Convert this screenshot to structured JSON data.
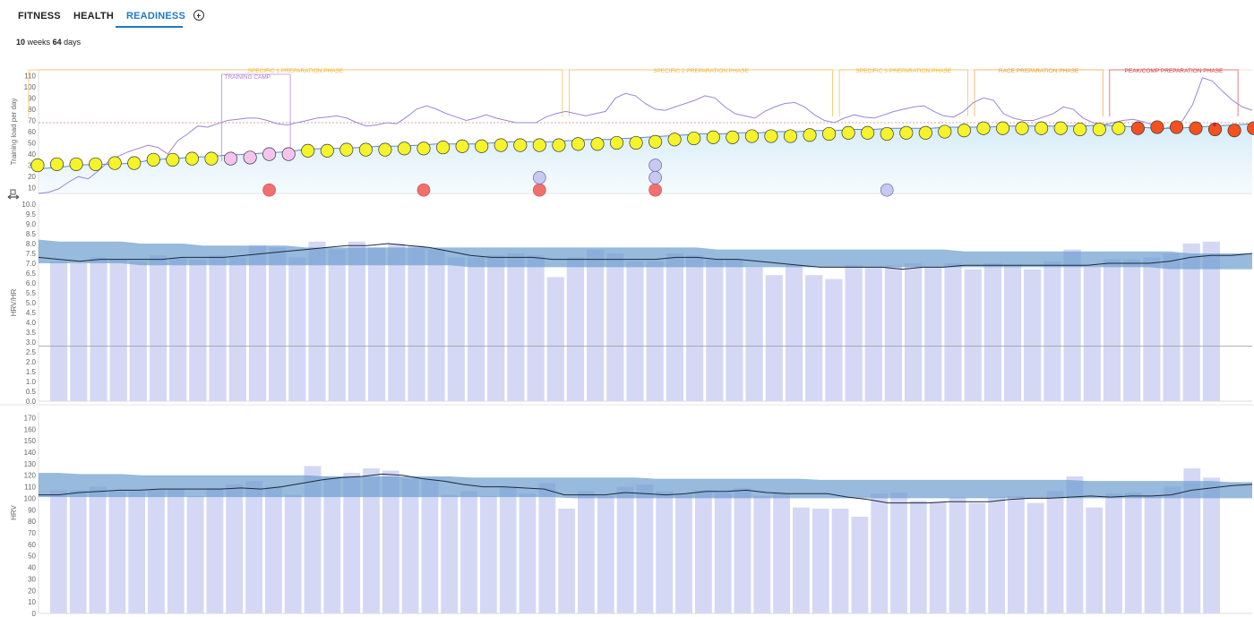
{
  "tabs": [
    {
      "label": "FITNESS",
      "active": false
    },
    {
      "label": "HEALTH",
      "active": false
    },
    {
      "label": "READINESS",
      "active": true
    }
  ],
  "period": {
    "weeks": "10",
    "weeks_unit": "weeks",
    "days": "64",
    "days_unit": "days"
  },
  "colors": {
    "accent": "#1f7ac0",
    "yellow": "#f5f32a",
    "orange_red": "#f4511e",
    "salmon": "#f07070",
    "lavender": "#c8c8f0",
    "pink": "#f4c4ef",
    "phase": "#f5b73a",
    "race_phase": "#f0a030",
    "peak_phase": "#e04040",
    "band": "#6f9fd0",
    "bars": "#d4d8f4"
  },
  "chart_data": [
    {
      "type": "scatter",
      "ylabel": "Training load per day",
      "yticks": [
        "10",
        "20",
        "30",
        "40",
        "50",
        "60",
        "70",
        "80",
        "90",
        "100",
        "110"
      ],
      "ylim": [
        5,
        115
      ],
      "reference_line": 68,
      "phases": [
        {
          "label": "SPECIFIC 1 PREPARATION PHASE",
          "start": 0,
          "end": 27
        },
        {
          "label": "TRAINING CAMP",
          "start": 10,
          "end": 13
        },
        {
          "label": "SPECIFIC 2 PREPARATION PHASE",
          "start": 28,
          "end": 41
        },
        {
          "label": "SPECIFIC 3 PREPARATION PHASE",
          "start": 42,
          "end": 48
        },
        {
          "label": "RACE PREPARATION PHASE",
          "start": 49,
          "end": 55
        },
        {
          "label": "PEAK/COMP PREPARATION PHASE",
          "start": 56,
          "end": 62
        }
      ],
      "load_line": [
        27,
        28,
        30,
        31,
        31,
        32,
        35,
        36,
        37,
        38,
        39,
        40,
        41,
        42,
        44,
        45,
        45,
        46,
        47,
        47,
        48,
        49,
        49,
        49,
        50,
        51,
        51,
        51,
        52,
        53,
        53,
        54,
        55,
        56,
        57,
        58,
        58,
        59,
        59,
        60,
        60,
        61,
        61,
        62,
        62,
        63,
        63,
        63,
        64,
        64,
        64,
        65,
        65,
        65,
        65,
        65,
        66,
        65,
        64,
        63,
        63,
        64,
        65,
        66,
        67
      ],
      "daily_points": [
        30,
        31,
        31,
        31,
        32,
        32,
        35,
        35,
        36,
        36,
        36,
        37,
        40,
        40,
        43,
        43,
        44,
        44,
        44,
        45,
        45,
        46,
        47,
        47,
        48,
        48,
        48,
        48,
        49,
        49,
        50,
        50,
        51,
        53,
        54,
        55,
        55,
        56,
        56,
        56,
        57,
        58,
        59,
        59,
        58,
        59,
        59,
        60,
        61,
        63,
        63,
        63,
        63,
        63,
        62,
        62,
        63,
        63,
        64,
        64,
        63,
        62,
        61,
        63
      ],
      "daily_colors": [
        "yellow",
        "yellow",
        "yellow",
        "yellow",
        "yellow",
        "yellow",
        "yellow",
        "yellow",
        "yellow",
        "yellow",
        "pink",
        "pink",
        "pink",
        "pink",
        "yellow",
        "yellow",
        "yellow",
        "yellow",
        "yellow",
        "yellow",
        "yellow",
        "yellow",
        "yellow",
        "yellow",
        "yellow",
        "yellow",
        "yellow",
        "yellow",
        "yellow",
        "yellow",
        "yellow",
        "yellow",
        "yellow",
        "yellow",
        "yellow",
        "yellow",
        "yellow",
        "yellow",
        "yellow",
        "yellow",
        "yellow",
        "yellow",
        "yellow",
        "yellow",
        "yellow",
        "yellow",
        "yellow",
        "yellow",
        "yellow",
        "yellow",
        "yellow",
        "yellow",
        "yellow",
        "yellow",
        "yellow",
        "yellow",
        "yellow",
        "orange_red",
        "orange_red",
        "orange_red",
        "orange_red",
        "orange_red",
        "orange_red",
        "orange_red"
      ],
      "trend_line": [
        5,
        6,
        9,
        15,
        20,
        18,
        25,
        33,
        38,
        42,
        45,
        48,
        46,
        40,
        52,
        58,
        65,
        64,
        67,
        70,
        71,
        72,
        72,
        70,
        67,
        66,
        68,
        70,
        72,
        73,
        74,
        72,
        68,
        65,
        66,
        68,
        67,
        73,
        80,
        83,
        80,
        76,
        73,
        70,
        72,
        75,
        72,
        70,
        68,
        68,
        68,
        73,
        76,
        78,
        76,
        74,
        76,
        78,
        90,
        94,
        92,
        85,
        80,
        79,
        82,
        85,
        88,
        92,
        90,
        82,
        76,
        74,
        72,
        78,
        82,
        85,
        86,
        82,
        75,
        70,
        68,
        72,
        75,
        73,
        72,
        75,
        78,
        80,
        82,
        83,
        78,
        74,
        73,
        78,
        86,
        90,
        88,
        76,
        72,
        70,
        70,
        73,
        76,
        82,
        80,
        72,
        68,
        66,
        68,
        70,
        71,
        69,
        66,
        62,
        65,
        70,
        84,
        108,
        105,
        96,
        88,
        82,
        79
      ],
      "low_markers": [
        {
          "day": 12,
          "value": 8,
          "color": "salmon"
        },
        {
          "day": 20,
          "value": 8,
          "color": "salmon"
        },
        {
          "day": 26,
          "value": 8,
          "color": "salmon"
        },
        {
          "day": 26,
          "value": 19,
          "color": "lavender"
        },
        {
          "day": 32,
          "value": 8,
          "color": "salmon"
        },
        {
          "day": 32,
          "value": 19,
          "color": "lavender"
        },
        {
          "day": 32,
          "value": 30,
          "color": "lavender"
        },
        {
          "day": 44,
          "value": 8,
          "color": "lavender"
        }
      ]
    },
    {
      "type": "bar",
      "ylabel": "HRV/HR",
      "yticks": [
        "0.0",
        "0.5",
        "1.0",
        "1.5",
        "2.0",
        "2.5",
        "3.0",
        "3.5",
        "4.0",
        "4.5",
        "5.0",
        "5.5",
        "6.0",
        "6.5",
        "7.0",
        "7.5",
        "8.0",
        "8.5",
        "9.0",
        "9.5",
        "10.0"
      ],
      "ylim": [
        0,
        10
      ],
      "reference_line": 2.8,
      "values": [
        7.1,
        7.0,
        7.3,
        7.2,
        7.1,
        7.4,
        7.3,
        7.2,
        7.4,
        7.3,
        7.9,
        7.8,
        7.3,
        8.1,
        7.7,
        8.1,
        7.8,
        8.0,
        7.9,
        7.7,
        7.3,
        7.3,
        7.4,
        7.5,
        7.4,
        6.3,
        7.3,
        7.7,
        7.5,
        7.1,
        7.1,
        7.5,
        7.4,
        7.2,
        7.2,
        6.8,
        6.4,
        6.9,
        6.4,
        6.2,
        6.9,
        6.8,
        6.9,
        7.0,
        6.8,
        7.0,
        6.7,
        7.0,
        6.9,
        6.7,
        7.1,
        7.7,
        6.8,
        7.2,
        7.2,
        7.3,
        7.5,
        8.0,
        8.1
      ],
      "band_upper": [
        8.2,
        8.1,
        8.1,
        8.1,
        8.1,
        8.0,
        8.0,
        8.0,
        7.9,
        7.9,
        7.9,
        7.9,
        7.9,
        7.8,
        7.8,
        7.8,
        7.8,
        7.8,
        7.8,
        7.8,
        7.8,
        7.8,
        7.8,
        7.8,
        7.8,
        7.8,
        7.8,
        7.8,
        7.8,
        7.8,
        7.8,
        7.8,
        7.8,
        7.7,
        7.7,
        7.7,
        7.7,
        7.7,
        7.7,
        7.7,
        7.7,
        7.7,
        7.7,
        7.7,
        7.7,
        7.6,
        7.6,
        7.6,
        7.6,
        7.6,
        7.6,
        7.6,
        7.6,
        7.6,
        7.6,
        7.6,
        7.5,
        7.5,
        7.5,
        7.5
      ],
      "band_lower": [
        7.0,
        7.0,
        7.0,
        7.0,
        7.0,
        6.9,
        6.9,
        6.9,
        6.9,
        6.9,
        6.9,
        6.9,
        6.9,
        6.9,
        6.9,
        6.9,
        6.9,
        6.9,
        6.9,
        6.9,
        6.9,
        6.8,
        6.8,
        6.8,
        6.8,
        6.8,
        6.8,
        6.8,
        6.8,
        6.8,
        6.8,
        6.8,
        6.8,
        6.8,
        6.8,
        6.8,
        6.8,
        6.8,
        6.8,
        6.8,
        6.8,
        6.8,
        6.8,
        6.8,
        6.8,
        6.8,
        6.8,
        6.8,
        6.8,
        6.8,
        6.8,
        6.8,
        6.8,
        6.8,
        6.8,
        6.7,
        6.7,
        6.7,
        6.7,
        6.7
      ],
      "trend_line": [
        7.3,
        7.2,
        7.1,
        7.2,
        7.2,
        7.2,
        7.2,
        7.3,
        7.3,
        7.3,
        7.4,
        7.5,
        7.6,
        7.7,
        7.8,
        7.9,
        7.9,
        8.0,
        7.9,
        7.8,
        7.6,
        7.4,
        7.3,
        7.3,
        7.3,
        7.2,
        7.2,
        7.2,
        7.2,
        7.2,
        7.2,
        7.3,
        7.3,
        7.2,
        7.2,
        7.1,
        7.0,
        6.9,
        6.8,
        6.8,
        6.8,
        6.8,
        6.7,
        6.8,
        6.8,
        6.9,
        6.9,
        6.9,
        6.9,
        6.9,
        6.9,
        6.9,
        7.0,
        7.0,
        7.0,
        7.1,
        7.3,
        7.4,
        7.4,
        7.5
      ]
    },
    {
      "type": "bar",
      "ylabel": "HRV",
      "yticks": [
        "0",
        "10",
        "20",
        "30",
        "40",
        "50",
        "60",
        "70",
        "80",
        "90",
        "100",
        "110",
        "120",
        "130",
        "140",
        "150",
        "160",
        "170"
      ],
      "ylim": [
        0,
        175
      ],
      "values": [
        107,
        107,
        110,
        106,
        106,
        108,
        108,
        102,
        109,
        112,
        115,
        110,
        103,
        128,
        119,
        122,
        126,
        124,
        117,
        116,
        103,
        106,
        102,
        110,
        104,
        113,
        91,
        106,
        102,
        110,
        112,
        106,
        103,
        107,
        105,
        109,
        102,
        104,
        92,
        91,
        91,
        84,
        104,
        105,
        98,
        97,
        101,
        96,
        101,
        102,
        96,
        106,
        119,
        92,
        104,
        105,
        102,
        110,
        126,
        118
      ],
      "band_upper": [
        122,
        122,
        121,
        121,
        121,
        120,
        120,
        120,
        120,
        120,
        120,
        120,
        120,
        120,
        119,
        119,
        119,
        119,
        119,
        119,
        119,
        118,
        118,
        118,
        118,
        118,
        118,
        118,
        118,
        118,
        117,
        117,
        117,
        117,
        117,
        117,
        117,
        117,
        116,
        116,
        116,
        116,
        116,
        116,
        116,
        116,
        116,
        116,
        116,
        116,
        116,
        115,
        115,
        115,
        115,
        115,
        115,
        115,
        114,
        114
      ],
      "band_lower": [
        101,
        101,
        101,
        101,
        101,
        101,
        101,
        101,
        101,
        101,
        101,
        101,
        101,
        101,
        101,
        101,
        101,
        101,
        101,
        101,
        101,
        101,
        101,
        101,
        101,
        101,
        100,
        100,
        100,
        100,
        100,
        100,
        100,
        100,
        100,
        100,
        100,
        100,
        100,
        100,
        100,
        100,
        100,
        100,
        100,
        100,
        100,
        100,
        100,
        100,
        100,
        100,
        100,
        100,
        100,
        100,
        100,
        100,
        100,
        100
      ],
      "trend_line": [
        103,
        103,
        105,
        106,
        107,
        107,
        108,
        108,
        108,
        108,
        109,
        108,
        110,
        113,
        116,
        118,
        119,
        121,
        120,
        117,
        115,
        112,
        110,
        110,
        109,
        108,
        103,
        103,
        103,
        105,
        104,
        103,
        104,
        106,
        106,
        107,
        105,
        104,
        104,
        104,
        101,
        99,
        96,
        96,
        96,
        97,
        97,
        97,
        99,
        100,
        100,
        101,
        102,
        101,
        102,
        102,
        103,
        107,
        109,
        111,
        112
      ]
    }
  ]
}
